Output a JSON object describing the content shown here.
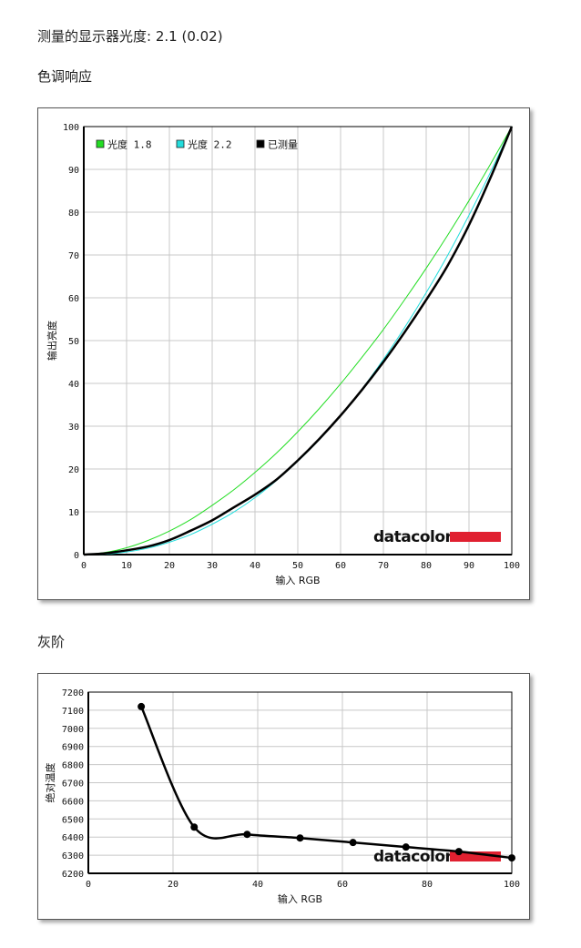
{
  "measured_gamma": {
    "label": "测量的显示器光度:",
    "value": "2.1 (0.02)"
  },
  "sections": {
    "tone_response": "色调响应",
    "gray_scale": "灰阶"
  },
  "brand": "datacolor",
  "colors": {
    "gamma18": "#22dd22",
    "gamma22": "#22dddd",
    "measured": "#000000",
    "grid": "#c8c8c8",
    "brand_red": "#e02030"
  },
  "chart_data": [
    {
      "type": "line",
      "xlabel": "输入 RGB",
      "ylabel": "输出亮度",
      "xlim": [
        0,
        100
      ],
      "ylim": [
        0,
        100
      ],
      "xticks": [
        0,
        10,
        20,
        30,
        40,
        50,
        60,
        70,
        80,
        90,
        100
      ],
      "yticks": [
        0,
        10,
        20,
        30,
        40,
        50,
        60,
        70,
        80,
        90,
        100
      ],
      "grid": true,
      "legend_placement": "top-left",
      "series": [
        {
          "name": "光度 1.8",
          "color": "#22dd22",
          "x": [
            0,
            5,
            10,
            15,
            20,
            25,
            30,
            35,
            40,
            45,
            50,
            55,
            60,
            65,
            70,
            75,
            80,
            85,
            90,
            95,
            100
          ],
          "y": [
            0,
            0.5,
            1.6,
            3.3,
            5.5,
            8.2,
            11.5,
            15.1,
            19.2,
            23.7,
            28.7,
            34.1,
            39.9,
            46.1,
            52.6,
            59.6,
            66.9,
            74.6,
            82.7,
            91.2,
            100
          ]
        },
        {
          "name": "光度 2.2",
          "color": "#22dddd",
          "x": [
            0,
            5,
            10,
            15,
            20,
            25,
            30,
            35,
            40,
            45,
            50,
            55,
            60,
            65,
            70,
            75,
            80,
            85,
            90,
            95,
            100
          ],
          "y": [
            0,
            0.1,
            0.6,
            1.5,
            2.9,
            4.7,
            7.1,
            9.9,
            13.3,
            17.3,
            21.8,
            26.8,
            32.5,
            38.7,
            45.6,
            53.1,
            61.2,
            69.9,
            79.3,
            89.3,
            100
          ]
        },
        {
          "name": "已测量",
          "color": "#000000",
          "x": [
            0,
            5,
            10,
            15,
            20,
            25,
            30,
            35,
            40,
            45,
            50,
            55,
            60,
            65,
            70,
            75,
            80,
            85,
            90,
            95,
            100
          ],
          "y": [
            0,
            0.3,
            1.0,
            1.9,
            3.4,
            5.6,
            8.0,
            11.0,
            14.0,
            17.5,
            22.0,
            27.0,
            32.5,
            38.5,
            45.0,
            52.0,
            59.5,
            67.5,
            77.0,
            88.0,
            100
          ]
        }
      ]
    },
    {
      "type": "line",
      "xlabel": "输入 RGB",
      "ylabel": "绝对温度",
      "xlim": [
        0,
        100
      ],
      "ylim": [
        6200,
        7200
      ],
      "xticks": [
        0,
        20,
        40,
        60,
        80,
        100
      ],
      "yticks": [
        6200,
        6300,
        6400,
        6500,
        6600,
        6700,
        6800,
        6900,
        7000,
        7100,
        7200
      ],
      "grid": true,
      "series": [
        {
          "name": "",
          "color": "#000000",
          "x": [
            12.5,
            25,
            37.5,
            50,
            62.5,
            75,
            87.5,
            100
          ],
          "y": [
            7120,
            6455,
            6415,
            6395,
            6370,
            6345,
            6320,
            6285
          ]
        }
      ]
    }
  ]
}
